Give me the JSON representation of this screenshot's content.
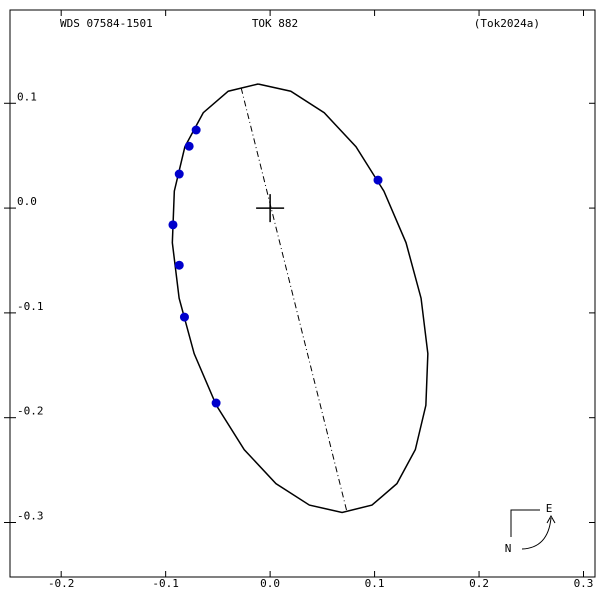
{
  "chart_data": {
    "type": "orbit",
    "title": "TOK 882",
    "subtitle": "WDS 07584-1501",
    "reference": "(Tok2024a)",
    "xlim": [
      -0.249,
      0.311
    ],
    "ylim": [
      -0.352,
      0.189
    ],
    "xticks": [
      -0.2,
      -0.1,
      {
        "value": 0,
        "label": "0.0"
      },
      0.1,
      0.2,
      0.3
    ],
    "yticks": [
      0.1,
      {
        "value": 0,
        "label": "0.0"
      },
      -0.1,
      -0.2,
      -0.3
    ],
    "orbit": {
      "color": "#000000",
      "x": [
        -0.0115,
        0.0198,
        0.0518,
        0.0822,
        0.1089,
        0.1301,
        0.1445,
        0.151,
        0.1491,
        0.139,
        0.1214,
        0.0975,
        0.0689,
        0.0376,
        0.0056,
        -0.0248,
        -0.0515,
        -0.0727,
        -0.0871,
        -0.0936,
        -0.0917,
        -0.0816,
        -0.064,
        -0.0401,
        -0.0115
      ],
      "y": [
        0.1184,
        0.1115,
        0.091,
        0.0585,
        0.0162,
        -0.033,
        -0.086,
        -0.1389,
        -0.1882,
        -0.2305,
        -0.2629,
        -0.2834,
        -0.2904,
        -0.2834,
        -0.2629,
        -0.2305,
        -0.1882,
        -0.1389,
        -0.086,
        -0.033,
        0.0162,
        0.0585,
        0.091,
        0.1115,
        0.1184
      ]
    },
    "node_line": {
      "x": [
        -0.0277,
        0.0737
      ],
      "y": [
        0.1146,
        -0.2904
      ]
    },
    "observations": {
      "color": "#0000cc",
      "x": [
        -0.0708,
        -0.0775,
        -0.087,
        -0.093,
        -0.087,
        -0.082,
        -0.0517,
        0.1033
      ],
      "y": [
        0.0745,
        0.059,
        0.0325,
        -0.016,
        -0.0545,
        -0.104,
        -0.186,
        0.0267
      ]
    },
    "primary": {
      "x": 0,
      "y": 0
    },
    "compass": {
      "east": "E",
      "north": "N"
    }
  }
}
